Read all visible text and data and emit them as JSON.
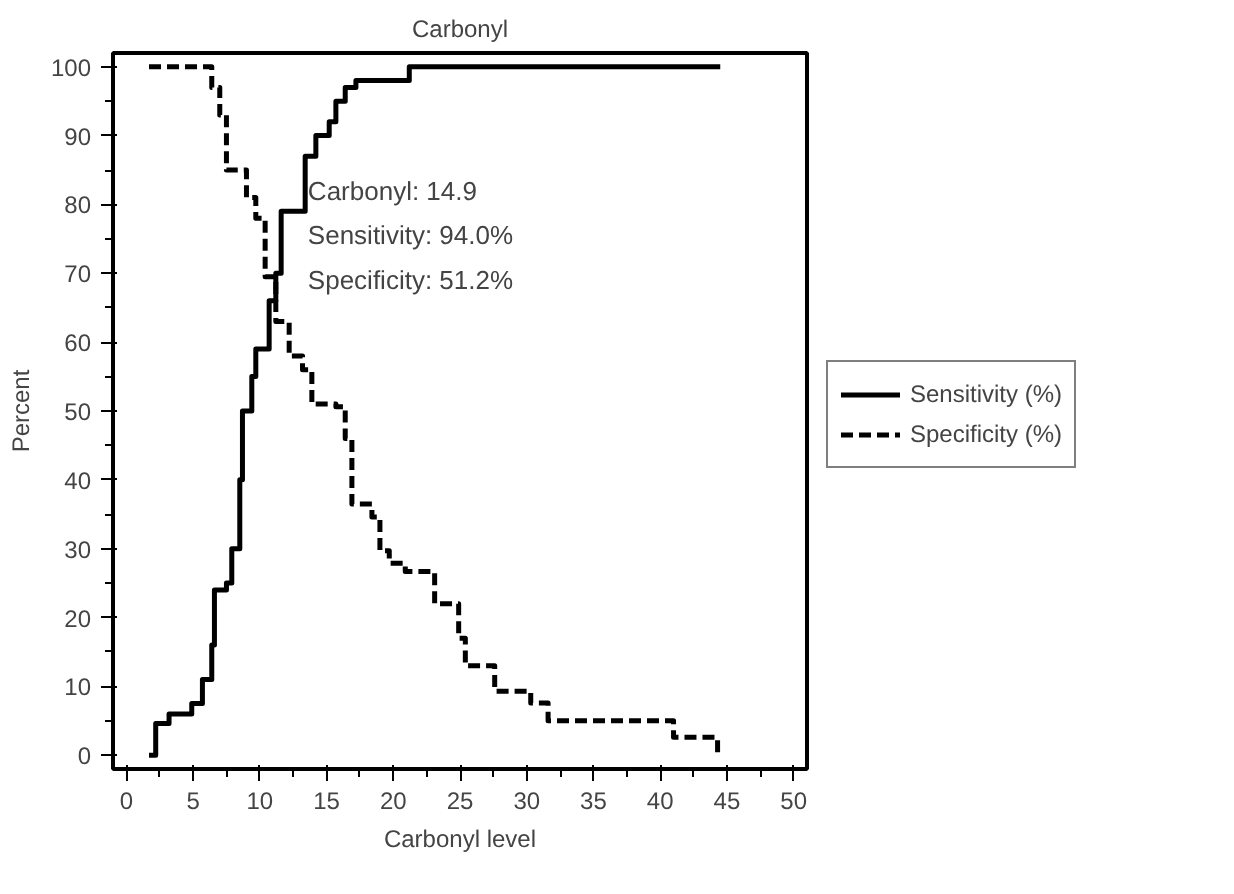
{
  "chart_data": {
    "type": "step",
    "title": "Carbonyl",
    "xlabel": "Carbonyl level",
    "ylabel": "Percent",
    "xlim": [
      -1,
      51
    ],
    "ylim": [
      -2,
      102
    ],
    "xticks": [
      0,
      5,
      10,
      15,
      20,
      25,
      30,
      35,
      40,
      45,
      50
    ],
    "yticks": [
      0,
      10,
      20,
      30,
      40,
      50,
      60,
      70,
      80,
      90,
      100
    ],
    "grid": false,
    "legend": "right",
    "marker": "none",
    "annotations": [
      "Carbonyl: 14.9",
      "Sensitivity: 94.0%",
      "Specificity: 51.2%"
    ],
    "series": [
      {
        "name": "Sensitivity (%)",
        "color": "#000000",
        "line_style": "solid",
        "x": [
          1.7,
          2.2,
          3.2,
          4.9,
          5.7,
          6.4,
          6.6,
          7.5,
          7.9,
          8.5,
          8.7,
          9.4,
          9.7,
          10.7,
          11.2,
          11.6,
          12.7,
          13.4,
          14.2,
          15.2,
          15.7,
          16.4,
          17.2,
          20.1,
          21.2,
          44.5
        ],
        "values": [
          0,
          4.6,
          6,
          7.5,
          11,
          16,
          24,
          25,
          30,
          40,
          50,
          55,
          59,
          66,
          70,
          79,
          79,
          87,
          90,
          92,
          95,
          97,
          98,
          98,
          100,
          100
        ]
      },
      {
        "name": "Specificity (%)",
        "color": "#000000",
        "line_style": "dashed",
        "x": [
          1.7,
          5.7,
          6.4,
          7,
          7.5,
          8.5,
          9,
          9.7,
          10.4,
          11.2,
          12.2,
          13.2,
          13.9,
          15.7,
          16.4,
          16.9,
          18.4,
          19,
          19.7,
          20.9,
          23.1,
          24.9,
          25.4,
          27.6,
          30.3,
          31.6,
          41,
          44.3
        ],
        "values": [
          100,
          100,
          97,
          93,
          85,
          85,
          81,
          78,
          69.5,
          63,
          58,
          56,
          51,
          50.6,
          46,
          36.5,
          34.6,
          29.7,
          27.9,
          26.7,
          22,
          17,
          13,
          9.3,
          7.6,
          5,
          2.6,
          0.3
        ]
      }
    ]
  }
}
